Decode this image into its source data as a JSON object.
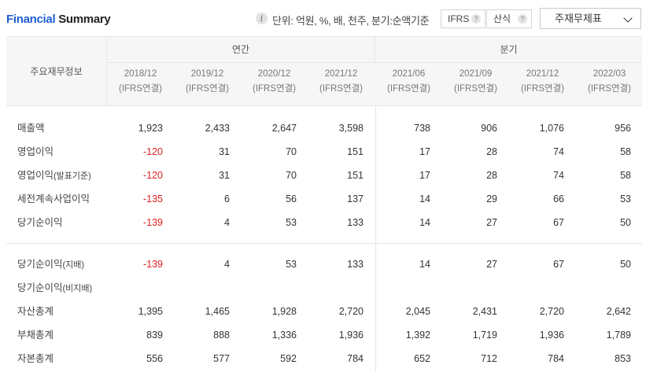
{
  "header": {
    "title_accent": "Financial",
    "title_rest": " Summary",
    "unit_text": "단위: 억원, %, 배, 천주, 분기:순액기준",
    "ifrs_label": "IFRS",
    "calc_label": "산식",
    "help_glyph": "?",
    "info_glyph": "i",
    "select_value": "주재무제표"
  },
  "table": {
    "label_header": "주요재무정보",
    "group_annual": "연간",
    "group_quarter": "분기",
    "columns": [
      {
        "period": "2018/12",
        "basis": "(IFRS연결)"
      },
      {
        "period": "2019/12",
        "basis": "(IFRS연결)"
      },
      {
        "period": "2020/12",
        "basis": "(IFRS연결)"
      },
      {
        "period": "2021/12",
        "basis": "(IFRS연결)"
      },
      {
        "period": "2021/06",
        "basis": "(IFRS연결)"
      },
      {
        "period": "2021/09",
        "basis": "(IFRS연결)"
      },
      {
        "period": "2021/12",
        "basis": "(IFRS연결)"
      },
      {
        "period": "2022/03",
        "basis": "(IFRS연결)"
      }
    ],
    "rows": [
      {
        "label": "매출액",
        "suffix": "",
        "values": [
          "1,923",
          "2,433",
          "2,647",
          "3,598",
          "738",
          "906",
          "1,076",
          "956"
        ]
      },
      {
        "label": "영업이익",
        "suffix": "",
        "values": [
          "-120",
          "31",
          "70",
          "151",
          "17",
          "28",
          "74",
          "58"
        ]
      },
      {
        "label": "영업이익",
        "suffix": "(발표기준)",
        "values": [
          "-120",
          "31",
          "70",
          "151",
          "17",
          "28",
          "74",
          "58"
        ]
      },
      {
        "label": "세전계속사업이익",
        "suffix": "",
        "values": [
          "-135",
          "6",
          "56",
          "137",
          "14",
          "29",
          "66",
          "53"
        ]
      },
      {
        "label": "당기순이익",
        "suffix": "",
        "values": [
          "-139",
          "4",
          "53",
          "133",
          "14",
          "27",
          "67",
          "50"
        ]
      },
      {
        "label": "당기순이익",
        "suffix": "(지배)",
        "values": [
          "-139",
          "4",
          "53",
          "133",
          "14",
          "27",
          "67",
          "50"
        ]
      },
      {
        "label": "당기순이익",
        "suffix": "(비지배)",
        "values": [
          "",
          "",
          "",
          "",
          "",
          "",
          "",
          ""
        ]
      },
      {
        "label": "자산총계",
        "suffix": "",
        "values": [
          "1,395",
          "1,465",
          "1,928",
          "2,720",
          "2,045",
          "2,431",
          "2,720",
          "2,642"
        ]
      },
      {
        "label": "부채총계",
        "suffix": "",
        "values": [
          "839",
          "888",
          "1,336",
          "1,936",
          "1,392",
          "1,719",
          "1,936",
          "1,789"
        ]
      },
      {
        "label": "자본총계",
        "suffix": "",
        "values": [
          "556",
          "577",
          "592",
          "784",
          "652",
          "712",
          "784",
          "853"
        ]
      }
    ]
  }
}
